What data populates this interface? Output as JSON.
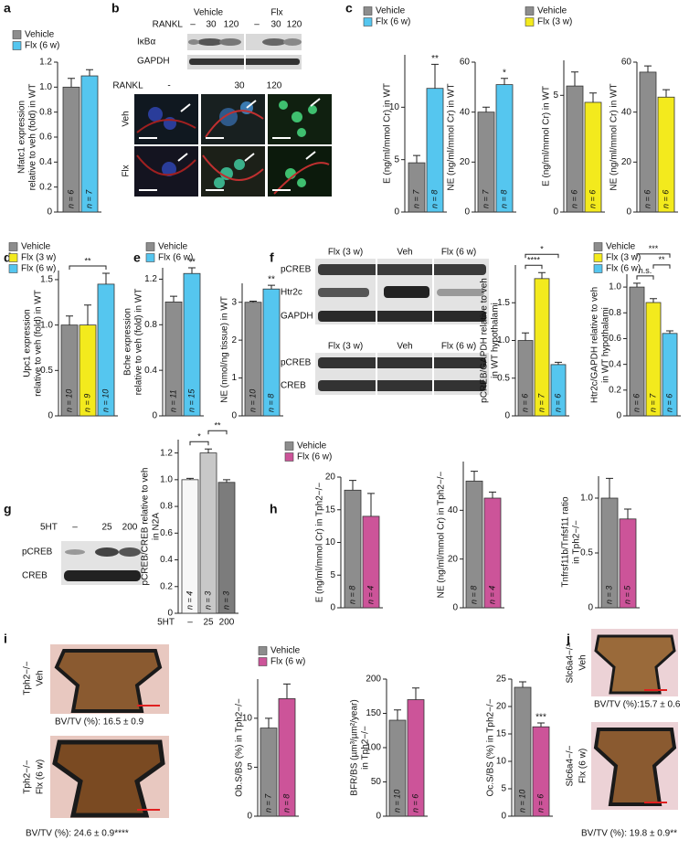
{
  "panels": [
    {
      "letter": "a",
      "legends": [
        [
          {
            "name": "Vehicle",
            "color": "#8d8d8d"
          },
          {
            "name": "Flx (6 w)",
            "color": "#55c6ef"
          }
        ]
      ],
      "charts": [
        {
          "type": "bar",
          "ylabel": [
            "Nfatc1 expression",
            "relative to veh (fold) in WT"
          ],
          "ylim": [
            0,
            1.2
          ],
          "yticks": [
            0,
            0.2,
            0.4,
            0.6,
            0.8,
            {
              "value": 1,
              "label": "1.0"
            },
            1.2
          ],
          "values": [
            1.0,
            1.09
          ],
          "errors": [
            0.07,
            0.05
          ],
          "colors": [
            "#8d8d8d",
            "#55c6ef"
          ],
          "n_labels": [
            "n = 6",
            "n = 7"
          ],
          "annotations": []
        }
      ]
    },
    {
      "letter": "b",
      "labels": [
        "Vehicle",
        "Flx",
        "RANKL",
        "–",
        "30",
        "120",
        "–",
        "30",
        "120",
        "IκBα",
        "GAPDH",
        "RANKL",
        "-",
        "30",
        "120",
        "Veh",
        "Flx"
      ]
    },
    {
      "letter": "c",
      "legends": [
        [
          {
            "name": "Vehicle",
            "color": "#8d8d8d"
          },
          {
            "name": "Flx (6 w)",
            "color": "#55c6ef"
          }
        ],
        [
          {
            "name": "Vehicle",
            "color": "#8d8d8d"
          },
          {
            "name": "Flx (3 w)",
            "color": "#f3ea1d"
          }
        ]
      ],
      "charts": [
        {
          "type": "bar",
          "ylabel": [
            "E (ng/ml/mmol Cr) in WT"
          ],
          "ylim": [
            0,
            15
          ],
          "yticks": [
            0,
            5,
            10
          ],
          "values": [
            4.7,
            11.8
          ],
          "errors": [
            0.7,
            2.3
          ],
          "colors": [
            "#8d8d8d",
            "#55c6ef"
          ],
          "n_labels": [
            "n = 7",
            "n = 8"
          ],
          "annotations": [
            {
              "bars": [
                1
              ],
              "label": "**"
            }
          ]
        },
        {
          "type": "bar",
          "ylabel": [
            "NE (ng/ml/mmol Cr) in WT"
          ],
          "ylim": [
            0,
            60
          ],
          "yticks": [
            0,
            20,
            40,
            60
          ],
          "values": [
            40,
            51
          ],
          "errors": [
            2,
            2.5
          ],
          "colors": [
            "#8d8d8d",
            "#55c6ef"
          ],
          "n_labels": [
            "n = 7",
            "n = 8"
          ],
          "annotations": [
            {
              "bars": [
                1
              ],
              "label": "*"
            }
          ]
        },
        {
          "type": "bar",
          "ylabel": [
            "E (ng/ml/mmol Cr) in WT"
          ],
          "ylim": [
            0,
            6.5
          ],
          "yticks": [
            0,
            5
          ],
          "values": [
            5.4,
            4.7
          ],
          "errors": [
            0.6,
            0.4
          ],
          "colors": [
            "#8d8d8d",
            "#f3ea1d"
          ],
          "n_labels": [
            "n = 6",
            "n = 6"
          ],
          "annotations": []
        },
        {
          "type": "bar",
          "ylabel": [
            "NE (ng/ml/mmol Cr) in WT"
          ],
          "ylim": [
            0,
            60
          ],
          "yticks": [
            0,
            20,
            40,
            60
          ],
          "values": [
            56,
            46
          ],
          "errors": [
            2.5,
            3
          ],
          "colors": [
            "#8d8d8d",
            "#f3ea1d"
          ],
          "n_labels": [
            "n = 6",
            "n = 6"
          ],
          "annotations": []
        }
      ]
    },
    {
      "letter": "d",
      "legends": [
        [
          {
            "name": "Vehicle",
            "color": "#8d8d8d"
          },
          {
            "name": "Flx (3 w)",
            "color": "#f3ea1d"
          },
          {
            "name": "Flx (6 w)",
            "color": "#55c6ef"
          }
        ]
      ],
      "charts": [
        {
          "type": "bar",
          "ylabel": [
            "Upc1 expression",
            "relative to veh (fold) in WT"
          ],
          "ylim": [
            0,
            1.6
          ],
          "yticks": [
            0,
            0.5,
            {
              "value": 1,
              "label": "1.0"
            },
            1.5
          ],
          "values": [
            1.0,
            1.0,
            1.45
          ],
          "errors": [
            0.1,
            0.22,
            0.12
          ],
          "colors": [
            "#8d8d8d",
            "#f3ea1d",
            "#55c6ef"
          ],
          "n_labels": [
            "n = 10",
            "n = 9",
            "n = 10"
          ],
          "annotations": [
            {
              "bars": [
                0,
                2
              ],
              "label": "**"
            }
          ]
        }
      ]
    },
    {
      "letter": "e",
      "legends": [
        [
          {
            "name": "Vehicle",
            "color": "#8d8d8d"
          },
          {
            "name": "Flx (6 w)",
            "color": "#55c6ef"
          }
        ]
      ],
      "charts": [
        {
          "type": "bar",
          "ylabel": [
            "Bche expression",
            "relative to veh (fold) in WT"
          ],
          "ylim": [
            0,
            1.3
          ],
          "yticks": [
            0,
            0.4,
            0.8,
            1.2
          ],
          "values": [
            1.0,
            1.25
          ],
          "errors": [
            0.05,
            0.05
          ],
          "colors": [
            "#8d8d8d",
            "#55c6ef"
          ],
          "n_labels": [
            "n = 11",
            "n = 15"
          ],
          "annotations": [
            {
              "bars": [
                1
              ],
              "label": "**"
            }
          ]
        },
        {
          "type": "bar",
          "ylabel": [
            "NE (nmol/ng tissue) in WT"
          ],
          "ylim": [
            0,
            3.5
          ],
          "yticks": [
            0,
            1,
            2,
            3
          ],
          "values": [
            3.0,
            3.35
          ],
          "errors": [
            0.03,
            0.1
          ],
          "colors": [
            "#8d8d8d",
            "#55c6ef"
          ],
          "n_labels": [
            "n = 10",
            "n = 8"
          ],
          "annotations": [
            {
              "bars": [
                1
              ],
              "label": "**"
            }
          ]
        }
      ]
    },
    {
      "letter": "f",
      "labels": [
        "Flx (3 w)",
        "Veh",
        "Flx (6 w)",
        "pCREB",
        "Htr2c",
        "GAPDH",
        "Flx (3 w)",
        "Veh",
        "Flx (6 w)",
        "pCREB",
        "CREB"
      ],
      "legends": [
        [
          {
            "name": "Vehicle",
            "color": "#8d8d8d"
          },
          {
            "name": "Flx (3 w)",
            "color": "#f3ea1d"
          },
          {
            "name": "Flx (6 w)",
            "color": "#55c6ef"
          }
        ]
      ],
      "charts": [
        {
          "type": "bar",
          "ylabel": [
            "pCREB/GAPDH relative to veh",
            "in WT hypothalami"
          ],
          "ylim": [
            0,
            2
          ],
          "yticks": [
            0,
            0.5,
            {
              "value": 1,
              "label": "1.0"
            },
            1.5
          ],
          "values": [
            1.0,
            1.82,
            0.68
          ],
          "errors": [
            0.1,
            0.08,
            0.03
          ],
          "colors": [
            "#8d8d8d",
            "#f3ea1d",
            "#55c6ef"
          ],
          "n_labels": [
            "n = 6",
            "n = 7",
            "n = 6"
          ],
          "annotations": [
            {
              "bars": [
                0,
                1
              ],
              "label": "****"
            },
            {
              "bars": [
                0,
                2
              ],
              "label": "*"
            }
          ]
        },
        {
          "type": "bar",
          "ylabel": [
            "Htr2c/GAPDH relative to veh",
            "in WT hypothalami"
          ],
          "ylim": [
            0,
            1.1
          ],
          "yticks": [
            0,
            0.2,
            0.4,
            0.6,
            0.8,
            {
              "value": 1,
              "label": "1.0"
            }
          ],
          "values": [
            1.0,
            0.88,
            0.64
          ],
          "errors": [
            0.03,
            0.03,
            0.02
          ],
          "colors": [
            "#8d8d8d",
            "#f3ea1d",
            "#55c6ef"
          ],
          "n_labels": [
            "n = 6",
            "n = 7",
            "n = 6"
          ],
          "annotations": [
            {
              "bars": [
                0,
                1
              ],
              "label": "n.s."
            },
            {
              "bars": [
                1,
                2
              ],
              "label": "**"
            },
            {
              "bars": [
                0,
                2
              ],
              "label": "***"
            }
          ]
        }
      ]
    },
    {
      "letter": "g",
      "labels": [
        "5HT",
        "–",
        "25",
        "200",
        "pCREB",
        "CREB"
      ],
      "charts": [
        {
          "type": "bar",
          "ylabel": [
            "pCREB/CREB relative to veh",
            "in N2A"
          ],
          "ylim": [
            0,
            1.3
          ],
          "yticks": [
            0,
            0.2,
            0.4,
            0.6,
            0.8,
            {
              "value": 1,
              "label": "1.0"
            },
            1.2
          ],
          "xlabel": "5HT",
          "categories": [
            "–",
            "25",
            "200"
          ],
          "values": [
            1.0,
            1.2,
            0.98
          ],
          "errors": [
            0.01,
            0.03,
            0.02
          ],
          "colors": [
            "#f7f7f7",
            "#c8c8c8",
            "#7c7c7c"
          ],
          "n_labels": [
            "n = 4",
            "n = 3",
            "n = 3"
          ],
          "annotations": [
            {
              "bars": [
                0,
                1
              ],
              "label": "*"
            },
            {
              "bars": [
                1,
                2
              ],
              "label": "**"
            }
          ]
        }
      ]
    },
    {
      "letter": "h",
      "legends": [
        [
          {
            "name": "Vehicle",
            "color": "#8d8d8d"
          },
          {
            "name": "Flx (6 w)",
            "color": "#cc5499"
          }
        ]
      ],
      "charts": [
        {
          "type": "bar",
          "ylabel": [
            "E (ng/ml/mmol Cr) in Tph2−/−"
          ],
          "ylim": [
            0,
            20
          ],
          "yticks": [
            0,
            5,
            10,
            15,
            20
          ],
          "values": [
            18,
            14
          ],
          "errors": [
            1.5,
            3.5
          ],
          "colors": [
            "#8d8d8d",
            "#cc5499"
          ],
          "n_labels": [
            "n = 8",
            "n = 4"
          ],
          "annotations": []
        },
        {
          "type": "bar",
          "ylabel": [
            "NE (ng/ml/mmol Cr) in Tph2−/−"
          ],
          "ylim": [
            0,
            60
          ],
          "yticks": [
            0,
            20,
            40
          ],
          "values": [
            52,
            45
          ],
          "errors": [
            4,
            2.5
          ],
          "colors": [
            "#8d8d8d",
            "#cc5499"
          ],
          "n_labels": [
            "n = 8",
            "n = 4"
          ],
          "annotations": []
        },
        {
          "type": "bar",
          "ylabel": [
            "Tnfrsf11b/Tnfsf11 ratio",
            "in Tph2−/−"
          ],
          "ylim": [
            0,
            1.2
          ],
          "yticks": [
            0,
            0.5,
            {
              "value": 1,
              "label": "1.0"
            }
          ],
          "values": [
            1.0,
            0.81
          ],
          "errors": [
            0.18,
            0.09
          ],
          "colors": [
            "#8d8d8d",
            "#cc5499"
          ],
          "n_labels": [
            "n = 3",
            "n = 5"
          ],
          "annotations": []
        }
      ]
    },
    {
      "letter": "i",
      "labels": [
        "Tph2−/−",
        "Veh",
        "BV/TV (%): 16.5 ± 0.9",
        "Tph2−/−",
        "Flx (6 w)",
        "BV/TV (%): 24.6 ± 0.9****"
      ],
      "legends": [
        [
          {
            "name": "Vehicle",
            "color": "#8d8d8d"
          },
          {
            "name": "Flx (6 w)",
            "color": "#cc5499"
          }
        ]
      ],
      "charts": [
        {
          "type": "bar",
          "ylabel": [
            "Ob.S/BS (%) in Tph2−/−"
          ],
          "ylim": [
            0,
            14
          ],
          "yticks": [
            0,
            5,
            10
          ],
          "values": [
            9,
            12
          ],
          "errors": [
            1,
            1.5
          ],
          "colors": [
            "#8d8d8d",
            "#cc5499"
          ],
          "n_labels": [
            "n = 7",
            "n = 8"
          ],
          "annotations": []
        },
        {
          "type": "bar",
          "ylabel": [
            "BFR/BS (µm³/µm²/year)",
            "in Tph2−/−"
          ],
          "ylim": [
            0,
            200
          ],
          "yticks": [
            0,
            50,
            100,
            150,
            200
          ],
          "values": [
            140,
            170
          ],
          "errors": [
            15,
            17
          ],
          "colors": [
            "#8d8d8d",
            "#cc5499"
          ],
          "n_labels": [
            "n = 10",
            "n = 6"
          ],
          "annotations": []
        },
        {
          "type": "bar",
          "ylabel": [
            "Oc.S/BS (%) in Tph2−/−"
          ],
          "ylim": [
            0,
            25
          ],
          "yticks": [
            0,
            5,
            10,
            15,
            20,
            25
          ],
          "values": [
            23.5,
            16.3
          ],
          "errors": [
            1,
            0.7
          ],
          "colors": [
            "#8d8d8d",
            "#cc5499"
          ],
          "n_labels": [
            "n = 10",
            "n = 6"
          ],
          "annotations": [
            {
              "bars": [
                1
              ],
              "label": "***"
            }
          ]
        }
      ]
    },
    {
      "letter": "j",
      "labels": [
        "Slc6a4−/−",
        "Veh",
        "BV/TV (%):15.7 ± 0.6",
        "Slc6a4−/−",
        "Flx (6 w)",
        "BV/TV (%): 19.8 ± 0.9**"
      ]
    }
  ]
}
